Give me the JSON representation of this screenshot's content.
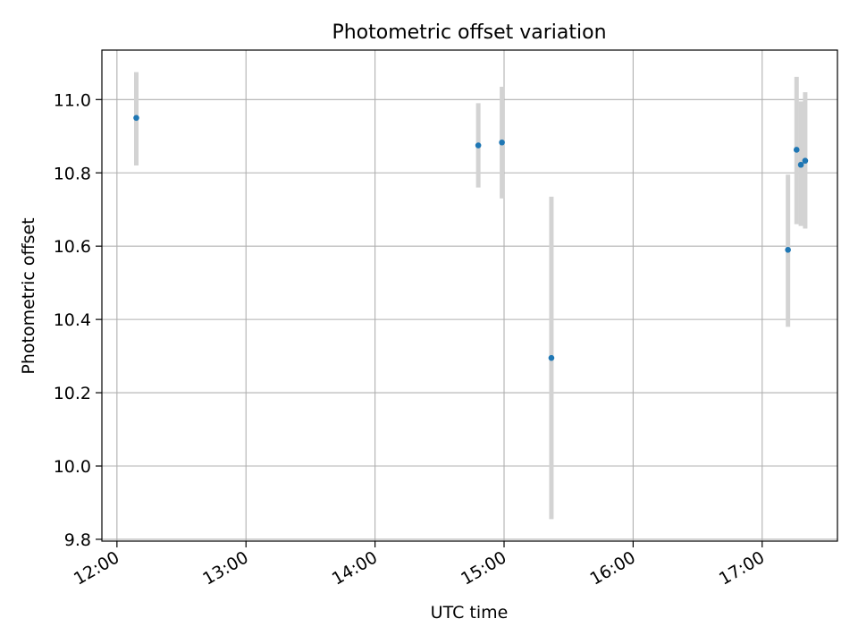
{
  "chart_data": {
    "type": "scatter",
    "title": "Photometric offset variation",
    "xlabel": "UTC time",
    "ylabel": "Photometric offset",
    "xlim": [
      "11:53",
      "17:35"
    ],
    "ylim": [
      9.795,
      11.135
    ],
    "x_ticks": [
      "12:00",
      "13:00",
      "14:00",
      "15:00",
      "16:00",
      "17:00"
    ],
    "y_ticks": [
      9.8,
      10.0,
      10.2,
      10.4,
      10.6,
      10.8,
      11.0
    ],
    "grid": true,
    "legend": "none",
    "points": [
      {
        "x": "12:09",
        "y": 10.95,
        "yerr_low": 10.82,
        "yerr_high": 11.075
      },
      {
        "x": "14:48",
        "y": 10.875,
        "yerr_low": 10.76,
        "yerr_high": 10.99
      },
      {
        "x": "14:59",
        "y": 10.883,
        "yerr_low": 10.73,
        "yerr_high": 11.035
      },
      {
        "x": "15:22",
        "y": 10.295,
        "yerr_low": 9.855,
        "yerr_high": 10.735
      },
      {
        "x": "17:12",
        "y": 10.59,
        "yerr_low": 10.38,
        "yerr_high": 10.795
      },
      {
        "x": "17:16",
        "y": 10.863,
        "yerr_low": 10.66,
        "yerr_high": 11.062
      },
      {
        "x": "17:18",
        "y": 10.822,
        "yerr_low": 10.655,
        "yerr_high": 10.995
      },
      {
        "x": "17:20",
        "y": 10.833,
        "yerr_low": 10.648,
        "yerr_high": 11.02
      }
    ],
    "colors": {
      "marker": "#1f77b4",
      "errorbar": "#d3d3d3",
      "grid": "#b0b0b0",
      "axes": "#000000"
    }
  }
}
